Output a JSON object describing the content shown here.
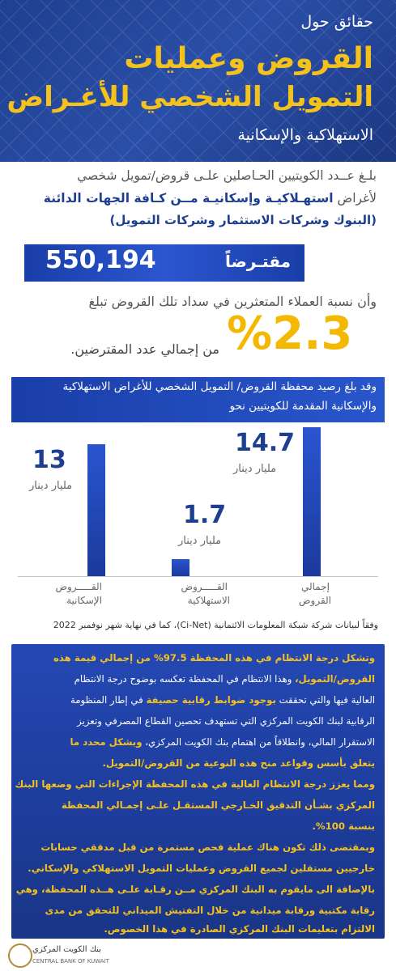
{
  "header": {
    "line1": "حقائق حول",
    "line2": "القروض وعمليات",
    "line3": "التمويل الشخصي للأغـراض",
    "line4": "الاستهلاكية والإسكانية"
  },
  "intro": {
    "line1": "بلـغ عــدد الكويتيين الحـاصلين علـى قروض/تمويل شخصي",
    "line2_prefix": "لأغراض",
    "line2_bold": "استهـلاكيـة وإسكانيـة مــن كـافة الجهات الدائنة",
    "line3": "(البنوك وشركات الاستثمار وشركات التمويل)"
  },
  "borrowers": {
    "value": "550,194",
    "label": "مقتـرضاً"
  },
  "default": {
    "line1": "وأن نسبة العملاء المتعثرين في سداد تلك القروض تبلغ",
    "percent": "%2.3",
    "line2": "من إجمالي عدد المقترضين."
  },
  "band": {
    "line1": "وقد بلغ رصيد محفظة القروض/ التمويل الشخصي للأغراض الاستهلاكية",
    "line2": "والإسكانية المقدمة للكويتيين نحو"
  },
  "chart_data": {
    "type": "bar",
    "categories": [
      "القروض الإسكانية",
      "القروض الاستهلاكية",
      "إجمالي القروض"
    ],
    "values": [
      13,
      1.7,
      14.7
    ],
    "value_labels": [
      "13",
      "1.7",
      "14.7"
    ],
    "unit": "مليار دينار",
    "ylim": [
      0,
      14.7
    ],
    "grid": false,
    "legend": "none"
  },
  "chart_labels": {
    "cat1_a": "القـــــروض",
    "cat1_b": "الإسكانية",
    "cat2_a": "القـــــروض",
    "cat2_b": "الاستهلاكية",
    "cat3_a": "إجمالي",
    "cat3_b": "القروض"
  },
  "source": "وفقاً لبيانات شركة شبكة المعلومات الائتمانية (Ci-Net)، كما في نهاية شهر نوفمبر 2022",
  "lower": {
    "l1_y": "وتشكل درجة الانتظام في هذه المحفظة 97.5% من إجمالي قيمة هذه",
    "l2_y": "القروض/التمويل،",
    "l2_w": "وهذا الانتظام في المحفظة تعكسه بوضوح درجة الانتظام",
    "l3_w1": "العالية فيها والتي تحققت",
    "l3_y": "بوجود ضوابط رقابية حصيفة",
    "l3_w2": "في إطار المنظومة",
    "l4": "الرقابية لبنك الكويت المركزي التي تستهدف تحصين القطاع المصرفي وتعزيز",
    "l5_w": "الاستقرار المالي، وانطلاقاً من اهتمام بنك الكويت المركزي،",
    "l5_y": "وبشكل محدد ما",
    "l6": "يتعلق بأسس وقواعد منح هذه النوعية من القروض/التمويل.",
    "l7": "ومما يعزز درجة الانتظام العالية في هذه المحفظة الإجراءات التي وضعها البنك",
    "l8": "المركزي بشـأن التدقيق الخـارجي المستقـل علـى إجمـالي المحفظة",
    "l9": "بنسبة 100%.",
    "l10": "وبمقتضى ذلك تكون هناك عملية فحص مستمرة من قبل مدققي حسابات",
    "l11": "خارجيين مستقلين لجميع القروض وعمليات التمويل الاستهلاكي والإسكاني.",
    "l12": "بالإضافة الى مايقوم به البنك المركزي مــن رقـابة علـى هــذه المحفظة، وهي",
    "l13": "رقابة مكتبية ورقابة ميدانية من خلال التفتيش الميداني للتحقق من مدى",
    "l14": "الالتزام بتعليمات البنك المركزي الصادرة في هذا الخصوص."
  },
  "footer": {
    "logo_text": "بنك الكويت المركزي",
    "logo_text_en": "CENTRAL BANK OF KUWAIT"
  }
}
